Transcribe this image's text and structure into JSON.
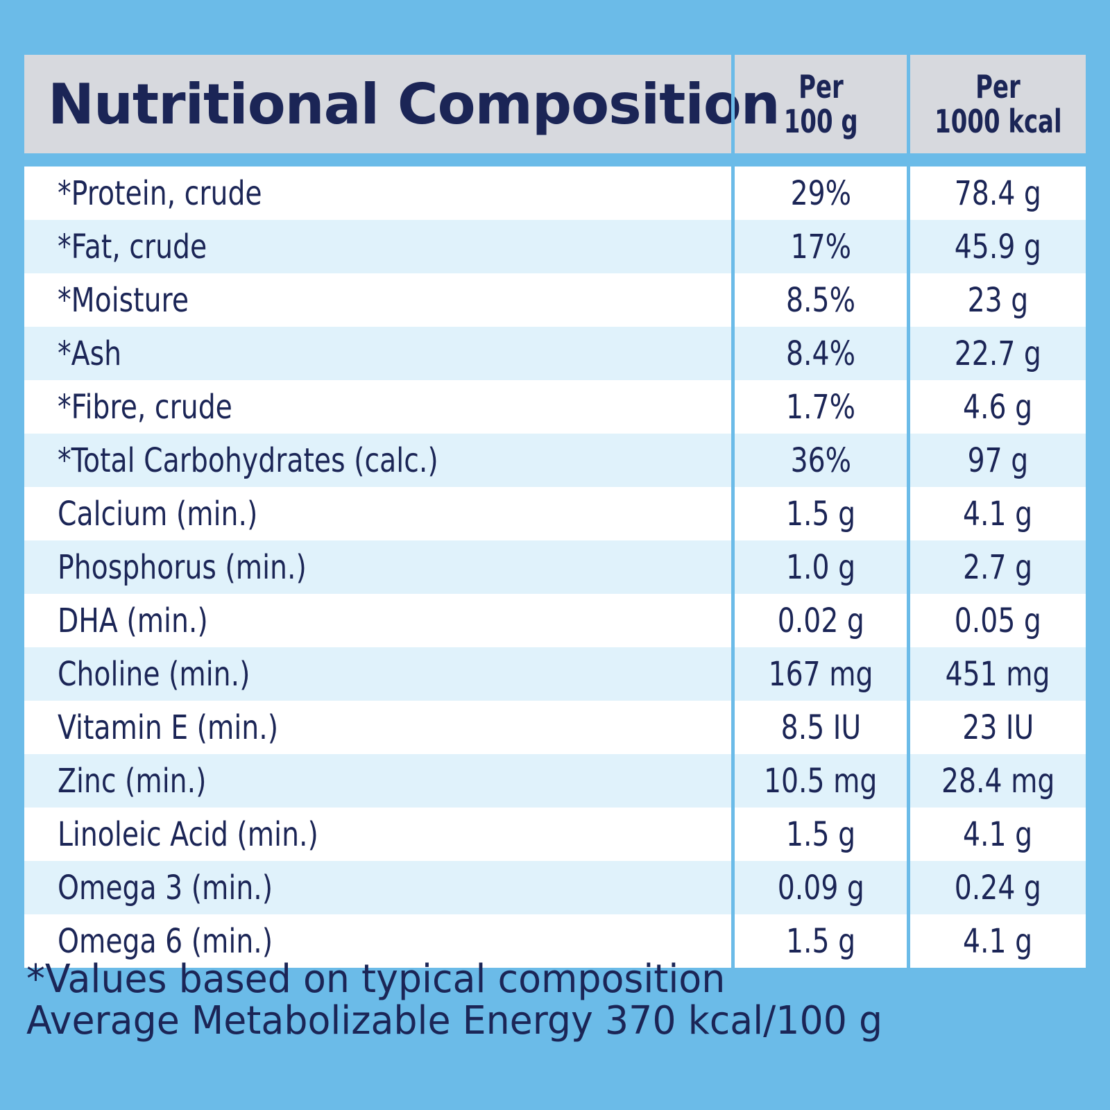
{
  "header": {
    "title": "Nutritional Composition",
    "col1_line1": "Per",
    "col1_line2": "100 g",
    "col2_line1": "Per",
    "col2_line2": "1000 kcal"
  },
  "rows": [
    {
      "name": "*Protein, crude",
      "per100g": "29%",
      "per1000kcal": "78.4 g"
    },
    {
      "name": "*Fat, crude",
      "per100g": "17%",
      "per1000kcal": "45.9 g"
    },
    {
      "name": "*Moisture",
      "per100g": "8.5%",
      "per1000kcal": "23 g"
    },
    {
      "name": "*Ash",
      "per100g": "8.4%",
      "per1000kcal": "22.7 g"
    },
    {
      "name": "*Fibre, crude",
      "per100g": "1.7%",
      "per1000kcal": "4.6 g"
    },
    {
      "name": "*Total Carbohydrates (calc.)",
      "per100g": "36%",
      "per1000kcal": "97 g"
    },
    {
      "name": "Calcium (min.)",
      "per100g": "1.5 g",
      "per1000kcal": "4.1 g"
    },
    {
      "name": "Phosphorus (min.)",
      "per100g": "1.0 g",
      "per1000kcal": "2.7 g"
    },
    {
      "name": "DHA (min.)",
      "per100g": "0.02 g",
      "per1000kcal": "0.05 g"
    },
    {
      "name": "Choline (min.)",
      "per100g": "167 mg",
      "per1000kcal": "451 mg"
    },
    {
      "name": "Vitamin E (min.)",
      "per100g": "8.5 IU",
      "per1000kcal": "23 IU"
    },
    {
      "name": "Zinc (min.)",
      "per100g": "10.5 mg",
      "per1000kcal": "28.4 mg"
    },
    {
      "name": "Linoleic Acid (min.)",
      "per100g": "1.5 g",
      "per1000kcal": "4.1 g"
    },
    {
      "name": "Omega 3 (min.)",
      "per100g": "0.09 g",
      "per1000kcal": "0.24 g"
    },
    {
      "name": "Omega 6 (min.)",
      "per100g": "1.5 g",
      "per1000kcal": "4.1 g"
    }
  ],
  "footer": {
    "note": "*Values based on typical composition",
    "energy": "Average Metabolizable Energy 370 kcal/100 g"
  },
  "colors": {
    "background": "#6bbbe8",
    "header_bg": "#d7d9de",
    "row_white": "#ffffff",
    "row_tint": "#e0f2fb",
    "text": "#1b2556"
  }
}
